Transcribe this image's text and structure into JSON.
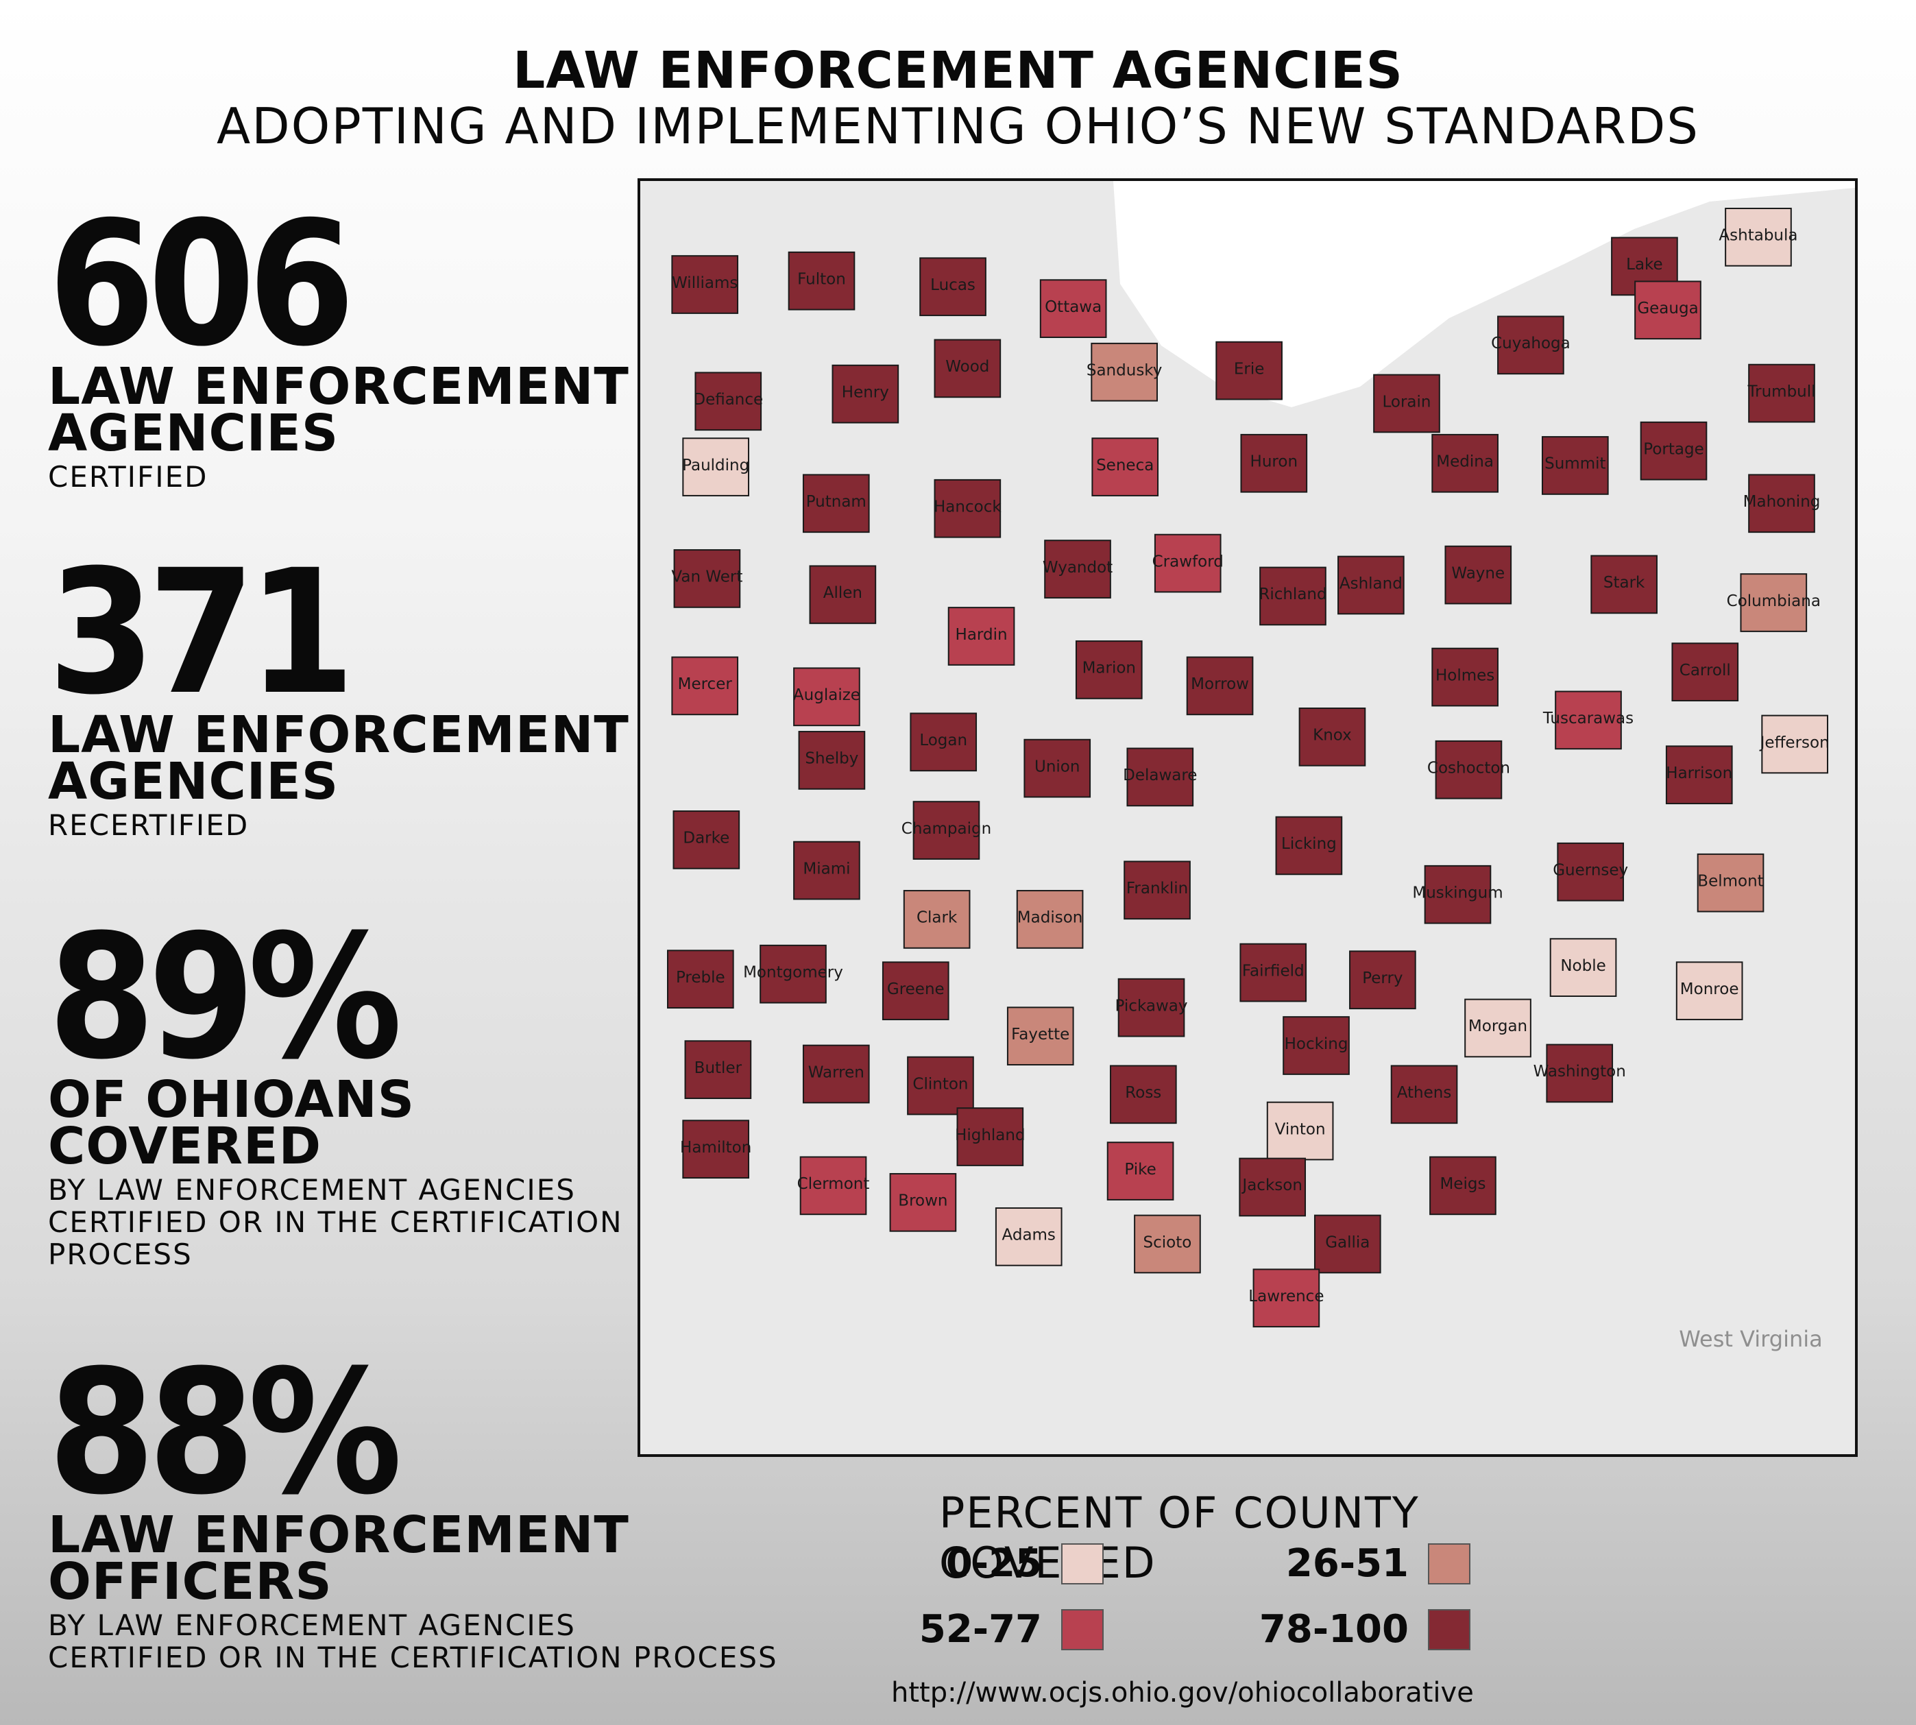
{
  "header": {
    "title": "LAW ENFORCEMENT AGENCIES",
    "subtitle": "ADOPTING AND IMPLEMENTING OHIO’S NEW STANDARDS"
  },
  "stats": [
    {
      "value": "606",
      "label_line1": "LAW ENFORCEMENT",
      "label_line2": "AGENCIES",
      "sub_lines": [
        "CERTIFIED"
      ]
    },
    {
      "value": "371",
      "label_line1": "LAW ENFORCEMENT",
      "label_line2": "AGENCIES",
      "sub_lines": [
        "RECERTIFIED"
      ]
    },
    {
      "value": "89%",
      "label_line1": "OF OHIOANS",
      "label_line2": "COVERED",
      "sub_lines": [
        "BY LAW ENFORCEMENT AGENCIES",
        "CERTIFIED OR IN THE CERTIFICATION",
        "PROCESS"
      ]
    },
    {
      "value": "88%",
      "label_line1": "LAW ENFORCEMENT",
      "label_line2": "OFFICERS",
      "sub_lines": [
        "BY LAW ENFORCEMENT AGENCIES",
        "CERTIFIED OR IN THE CERTIFICATION PROCESS"
      ]
    }
  ],
  "legend": {
    "title": "PERCENT OF COUNTY COVERED",
    "items": [
      {
        "range": "0-25",
        "color": "#ecd1ca"
      },
      {
        "range": "26-51",
        "color": "#c9877a"
      },
      {
        "range": "52-77",
        "color": "#b84150"
      },
      {
        "range": "78-100",
        "color": "#842933"
      }
    ]
  },
  "map": {
    "neighbor_label": "West Virginia",
    "counties": [
      {
        "name": "Williams",
        "bin": 3
      },
      {
        "name": "Fulton",
        "bin": 3
      },
      {
        "name": "Lucas",
        "bin": 3
      },
      {
        "name": "Ottawa",
        "bin": 2
      },
      {
        "name": "Wood",
        "bin": 3
      },
      {
        "name": "Henry",
        "bin": 3
      },
      {
        "name": "Defiance",
        "bin": 3
      },
      {
        "name": "Sandusky",
        "bin": 1
      },
      {
        "name": "Erie",
        "bin": 3
      },
      {
        "name": "Lorain",
        "bin": 3
      },
      {
        "name": "Cuyahoga",
        "bin": 3
      },
      {
        "name": "Lake",
        "bin": 3
      },
      {
        "name": "Geauga",
        "bin": 2
      },
      {
        "name": "Ashtabula",
        "bin": 0
      },
      {
        "name": "Trumbull",
        "bin": 3
      },
      {
        "name": "Paulding",
        "bin": 0
      },
      {
        "name": "Putnam",
        "bin": 3
      },
      {
        "name": "Hancock",
        "bin": 3
      },
      {
        "name": "Seneca",
        "bin": 2
      },
      {
        "name": "Huron",
        "bin": 3
      },
      {
        "name": "Medina",
        "bin": 3
      },
      {
        "name": "Summit",
        "bin": 3
      },
      {
        "name": "Portage",
        "bin": 3
      },
      {
        "name": "Mahoning",
        "bin": 3
      },
      {
        "name": "Van Wert",
        "bin": 3
      },
      {
        "name": "Allen",
        "bin": 3
      },
      {
        "name": "Wyandot",
        "bin": 3
      },
      {
        "name": "Crawford",
        "bin": 2
      },
      {
        "name": "Richland",
        "bin": 3
      },
      {
        "name": "Ashland",
        "bin": 3
      },
      {
        "name": "Wayne",
        "bin": 3
      },
      {
        "name": "Stark",
        "bin": 3
      },
      {
        "name": "Columbiana",
        "bin": 1
      },
      {
        "name": "Mercer",
        "bin": 2
      },
      {
        "name": "Auglaize",
        "bin": 2
      },
      {
        "name": "Hardin",
        "bin": 2
      },
      {
        "name": "Marion",
        "bin": 3
      },
      {
        "name": "Morrow",
        "bin": 3
      },
      {
        "name": "Holmes",
        "bin": 3
      },
      {
        "name": "Tuscarawas",
        "bin": 2
      },
      {
        "name": "Carroll",
        "bin": 3
      },
      {
        "name": "Jefferson",
        "bin": 0
      },
      {
        "name": "Shelby",
        "bin": 3
      },
      {
        "name": "Logan",
        "bin": 3
      },
      {
        "name": "Union",
        "bin": 3
      },
      {
        "name": "Delaware",
        "bin": 3
      },
      {
        "name": "Knox",
        "bin": 3
      },
      {
        "name": "Coshocton",
        "bin": 3
      },
      {
        "name": "Harrison",
        "bin": 3
      },
      {
        "name": "Darke",
        "bin": 3
      },
      {
        "name": "Miami",
        "bin": 3
      },
      {
        "name": "Champaign",
        "bin": 3
      },
      {
        "name": "Licking",
        "bin": 3
      },
      {
        "name": "Clark",
        "bin": 1
      },
      {
        "name": "Madison",
        "bin": 1
      },
      {
        "name": "Franklin",
        "bin": 3
      },
      {
        "name": "Muskingum",
        "bin": 3
      },
      {
        "name": "Guernsey",
        "bin": 3
      },
      {
        "name": "Belmont",
        "bin": 1
      },
      {
        "name": "Preble",
        "bin": 3
      },
      {
        "name": "Montgomery",
        "bin": 3
      },
      {
        "name": "Greene",
        "bin": 3
      },
      {
        "name": "Fairfield",
        "bin": 3
      },
      {
        "name": "Perry",
        "bin": 3
      },
      {
        "name": "Noble",
        "bin": 0
      },
      {
        "name": "Monroe",
        "bin": 0
      },
      {
        "name": "Morgan",
        "bin": 0
      },
      {
        "name": "Pickaway",
        "bin": 3
      },
      {
        "name": "Fayette",
        "bin": 1
      },
      {
        "name": "Butler",
        "bin": 3
      },
      {
        "name": "Warren",
        "bin": 3
      },
      {
        "name": "Clinton",
        "bin": 3
      },
      {
        "name": "Hocking",
        "bin": 3
      },
      {
        "name": "Washington",
        "bin": 3
      },
      {
        "name": "Ross",
        "bin": 3
      },
      {
        "name": "Athens",
        "bin": 3
      },
      {
        "name": "Vinton",
        "bin": 0
      },
      {
        "name": "Hamilton",
        "bin": 3
      },
      {
        "name": "Highland",
        "bin": 3
      },
      {
        "name": "Clermont",
        "bin": 2
      },
      {
        "name": "Pike",
        "bin": 2
      },
      {
        "name": "Jackson",
        "bin": 3
      },
      {
        "name": "Meigs",
        "bin": 3
      },
      {
        "name": "Brown",
        "bin": 2
      },
      {
        "name": "Adams",
        "bin": 0
      },
      {
        "name": "Scioto",
        "bin": 1
      },
      {
        "name": "Gallia",
        "bin": 3
      },
      {
        "name": "Lawrence",
        "bin": 2
      }
    ]
  },
  "source": "http://www.ocjs.ohio.gov/ohiocollaborative"
}
